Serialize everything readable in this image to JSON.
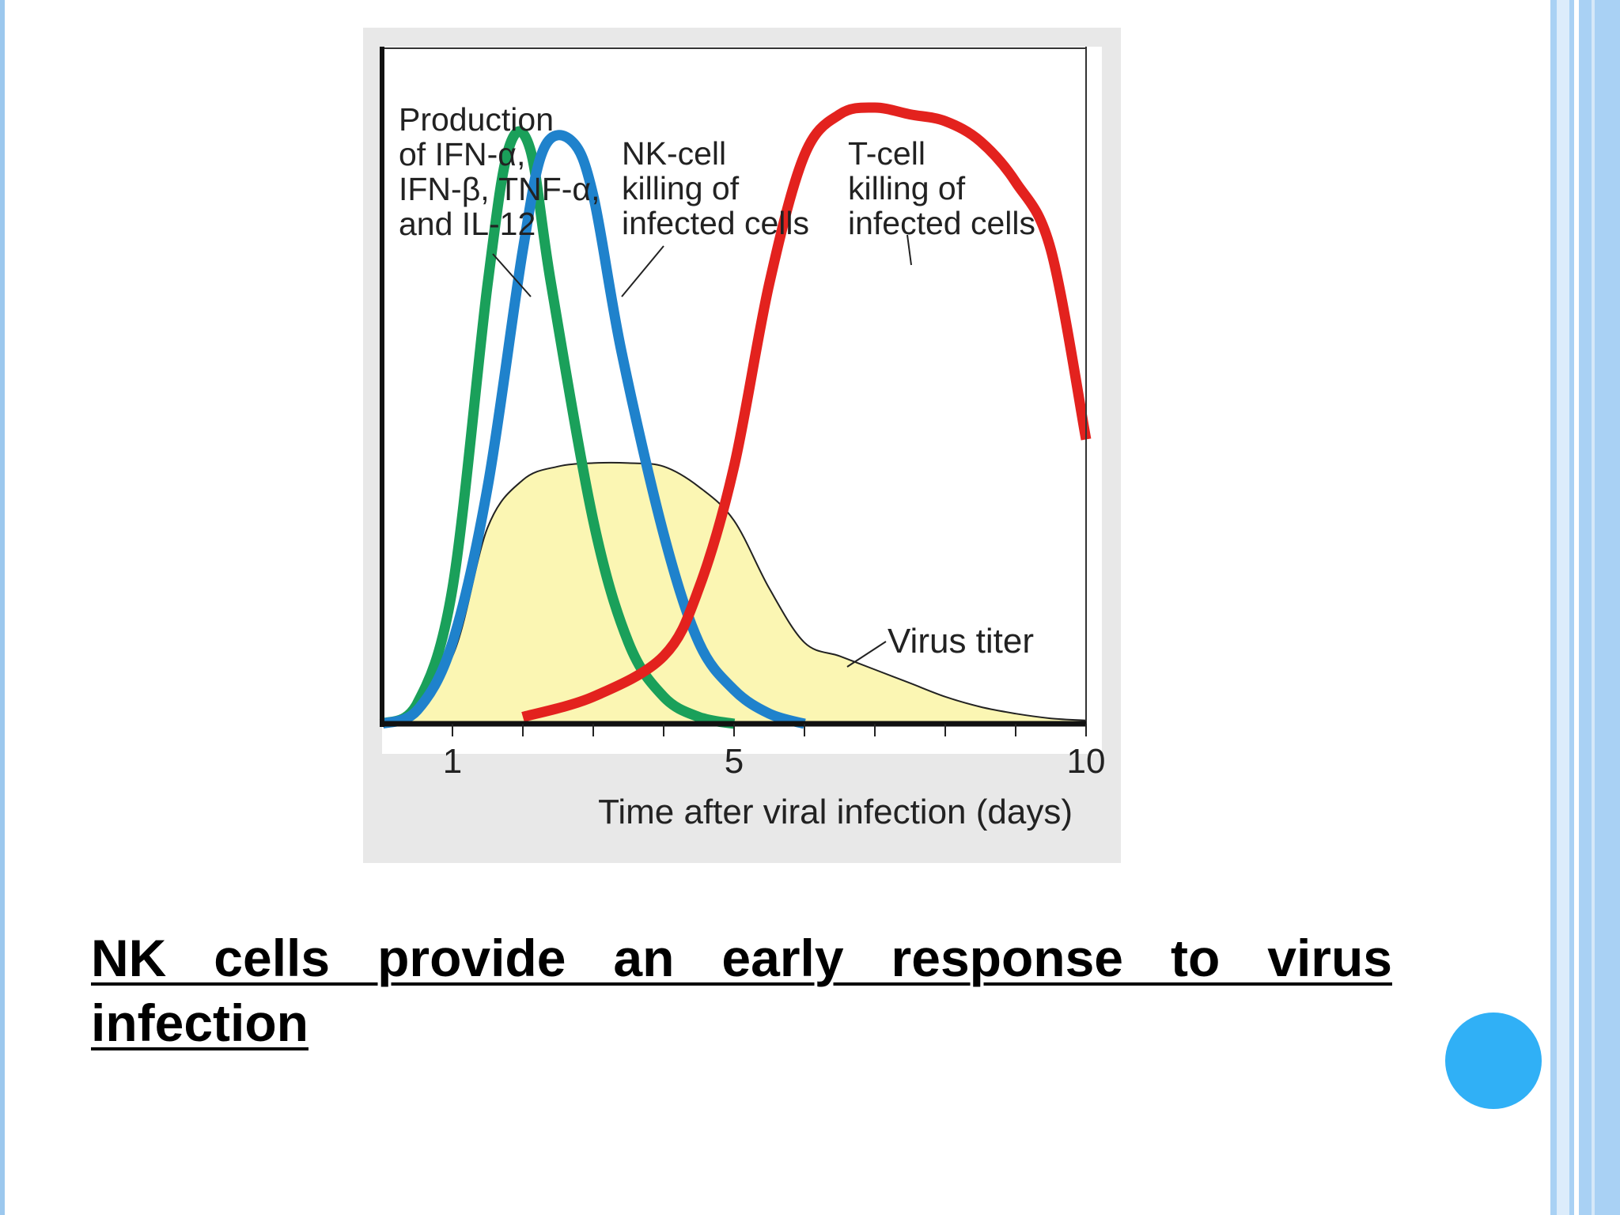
{
  "slide": {
    "caption": " NK cells provide an early response to virus infection",
    "accent_color": "#30b0f6",
    "border_color": "#a9d1f4"
  },
  "chart_data": {
    "type": "line",
    "xlabel": "Time after viral infection (days)",
    "xlim": [
      0,
      10
    ],
    "ylim": [
      0,
      1
    ],
    "x_ticks": [
      1,
      2,
      3,
      4,
      5,
      6,
      7,
      8,
      9,
      10
    ],
    "x_tick_labels": [
      {
        "x": 1,
        "label": "1"
      },
      {
        "x": 5,
        "label": "5"
      },
      {
        "x": 10,
        "label": "10"
      }
    ],
    "series": [
      {
        "name": "Virus titer",
        "style": "filled-area",
        "color": "#fbf6b3",
        "x": [
          0.3,
          1,
          1.5,
          2,
          2.5,
          3,
          3.5,
          4,
          4.5,
          5,
          5.5,
          6,
          6.5,
          7,
          7.5,
          8,
          8.5,
          9,
          9.5,
          10
        ],
        "y": [
          0.01,
          0.1,
          0.29,
          0.36,
          0.38,
          0.385,
          0.385,
          0.38,
          0.35,
          0.3,
          0.2,
          0.12,
          0.1,
          0.08,
          0.06,
          0.04,
          0.025,
          0.015,
          0.008,
          0.005
        ]
      },
      {
        "name": "Production of IFN-α, IFN-β, TNF-α, and IL-12",
        "label_lines": [
          "Production",
          "of IFN-α,",
          "IFN-β, TNF-α,",
          "and IL-12"
        ],
        "color": "#1aa05a",
        "x": [
          0,
          0.5,
          1,
          1.5,
          1.8,
          2.1,
          2.4,
          3,
          3.5,
          4,
          4.5,
          5
        ],
        "y": [
          0,
          0.03,
          0.2,
          0.65,
          0.85,
          0.85,
          0.65,
          0.3,
          0.12,
          0.04,
          0.01,
          0
        ]
      },
      {
        "name": "NK-cell killing of infected cells",
        "label_lines": [
          "NK-cell",
          "killing of",
          "infected cells"
        ],
        "color": "#1f82cc",
        "x": [
          0,
          0.5,
          1,
          1.5,
          2,
          2.3,
          2.7,
          3,
          3.4,
          4,
          4.5,
          5,
          5.5,
          6
        ],
        "y": [
          0,
          0.02,
          0.12,
          0.35,
          0.7,
          0.85,
          0.86,
          0.78,
          0.55,
          0.28,
          0.12,
          0.05,
          0.015,
          0
        ]
      },
      {
        "name": "T-cell killing of infected cells",
        "label_lines": [
          "T-cell",
          "killing of",
          "infected cells"
        ],
        "color": "#e3221e",
        "x": [
          2,
          3,
          4,
          4.5,
          5,
          5.5,
          6,
          6.5,
          7,
          7.5,
          8,
          8.5,
          9,
          9.5,
          10
        ],
        "y": [
          0.01,
          0.04,
          0.1,
          0.2,
          0.38,
          0.65,
          0.84,
          0.9,
          0.91,
          0.9,
          0.89,
          0.86,
          0.8,
          0.7,
          0.42
        ]
      }
    ],
    "annotations": [
      "Virus titer"
    ],
    "grid": false,
    "legend": "none"
  }
}
